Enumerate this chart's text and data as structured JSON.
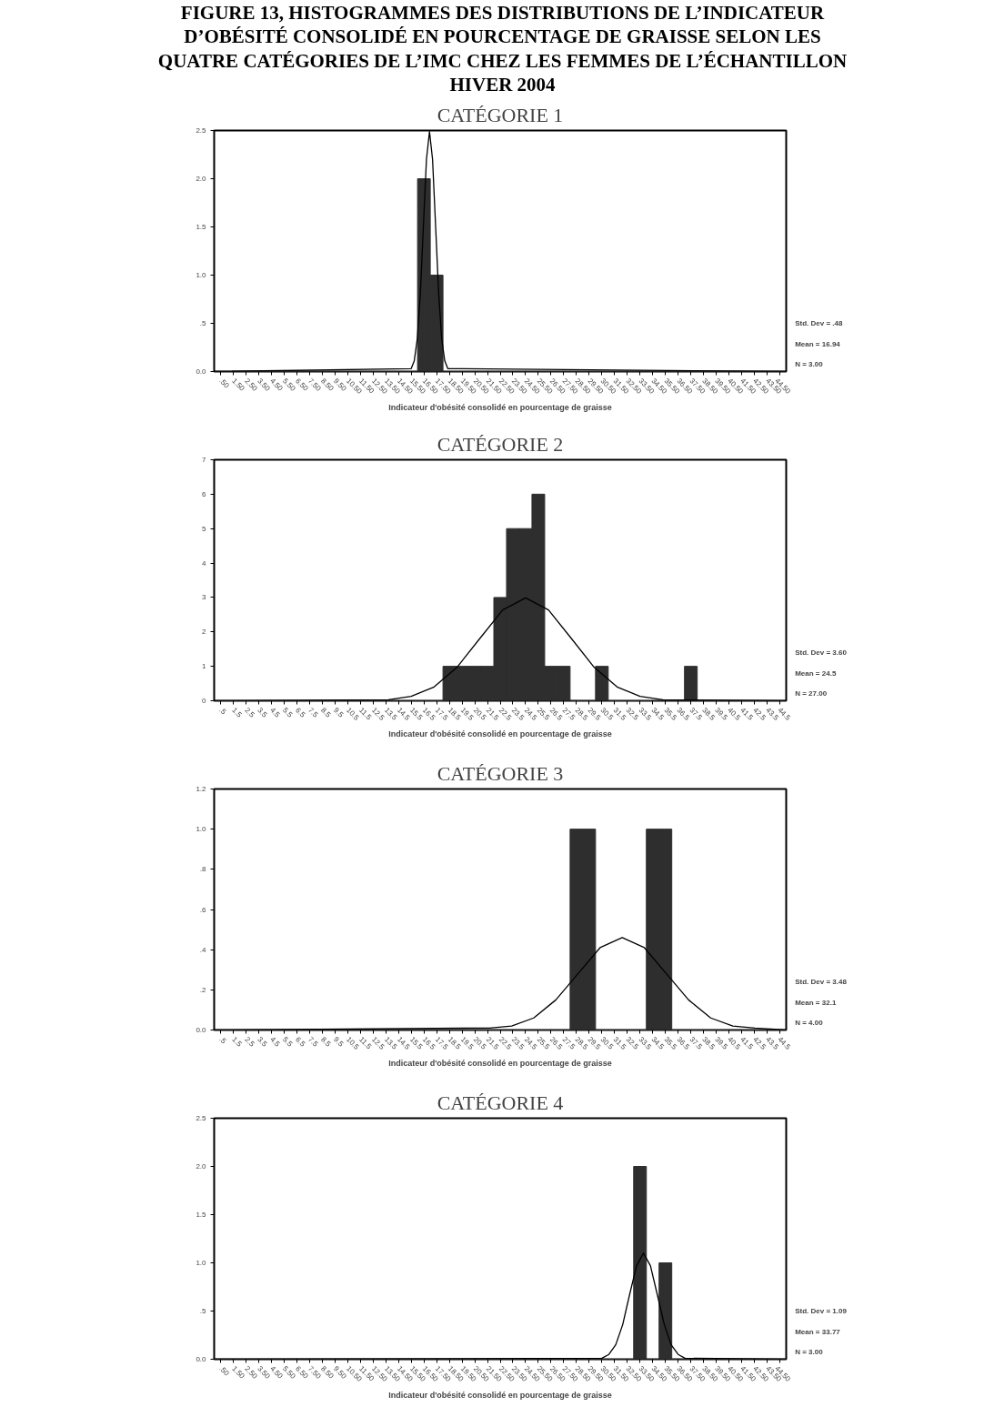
{
  "chart_data": [
    {
      "type": "histogram",
      "title": "FIGURE 13, HISTOGRAMMES DES DISTRIBUTIONS DE L’INDICATEUR D’OBÉSITÉ CONSOLIDÉ EN POURCENTAGE DE GRAISSE SELON LES QUATRE CATÉGORIES DE L’IMC CHEZ LES FEMMES DE L’ÉCHANTILLON HIVER 2004",
      "subtitle": "CATÉGORIE 1",
      "xlabel": "Indicateur d'obésité consolidé en pourcentage de graisse",
      "series": [
        {
          "type": "histogram",
          "color": "#2e2e2e",
          "bins": [
            0,
            1,
            2,
            3,
            4,
            5,
            6,
            7,
            8,
            9,
            10,
            11,
            12,
            13,
            14,
            15,
            16,
            17,
            18,
            19,
            20,
            21,
            22,
            23,
            24,
            25,
            26,
            27,
            28,
            29,
            30,
            31,
            32,
            33,
            34,
            35,
            36,
            37,
            38,
            39,
            40,
            41,
            42,
            43,
            44,
            45
          ],
          "values": [
            0,
            0,
            0,
            0,
            0,
            0,
            0,
            0,
            0,
            0,
            0,
            0,
            0,
            0,
            0,
            0,
            2,
            1,
            0,
            0,
            0,
            0,
            0,
            0,
            0,
            0,
            0,
            0,
            0,
            0,
            0,
            0,
            0,
            0,
            0,
            0,
            0,
            0,
            0,
            0,
            0,
            0,
            0,
            0,
            0
          ]
        },
        {
          "type": "line",
          "color": "#000000",
          "x": [
            0,
            15.5,
            15.74,
            15.98,
            16.22,
            16.46,
            16.7,
            16.94,
            17.18,
            17.42,
            17.66,
            17.9,
            18.14,
            18.38,
            45
          ],
          "values": [
            0,
            0.03,
            0.11,
            0.34,
            0.81,
            1.51,
            2.2,
            2.49,
            2.2,
            1.51,
            0.81,
            0.34,
            0.11,
            0.03,
            0
          ]
        }
      ],
      "xlim": [
        0,
        45
      ],
      "ylim": [
        0,
        2.5
      ],
      "yticks": [
        {
          "value": 0,
          "label": "0.0"
        },
        {
          "value": 0.5,
          "label": ".5"
        },
        {
          "value": 1,
          "label": "1.0"
        },
        {
          "value": 1.5,
          "label": "1.5"
        },
        {
          "value": 2,
          "label": "2.0"
        },
        {
          "value": 2.5,
          "label": "2.5"
        }
      ],
      "xticks": [
        {
          "value": 0.5,
          "label": ".50"
        },
        {
          "value": 1.5,
          "label": "1.50"
        },
        {
          "value": 2.5,
          "label": "2.50"
        },
        {
          "value": 3.5,
          "label": "3.50"
        },
        {
          "value": 4.5,
          "label": "4.50"
        },
        {
          "value": 5.5,
          "label": "5.50"
        },
        {
          "value": 6.5,
          "label": "6.50"
        },
        {
          "value": 7.5,
          "label": "7.50"
        },
        {
          "value": 8.5,
          "label": "8.50"
        },
        {
          "value": 9.5,
          "label": "9.50"
        },
        {
          "value": 10.5,
          "label": "10.50"
        },
        {
          "value": 11.5,
          "label": "11.50"
        },
        {
          "value": 12.5,
          "label": "12.50"
        },
        {
          "value": 13.5,
          "label": "13.50"
        },
        {
          "value": 14.5,
          "label": "14.50"
        },
        {
          "value": 15.5,
          "label": "15.50"
        },
        {
          "value": 16.5,
          "label": "16.50"
        },
        {
          "value": 17.5,
          "label": "17.50"
        },
        {
          "value": 18.5,
          "label": "18.50"
        },
        {
          "value": 19.5,
          "label": "19.50"
        },
        {
          "value": 20.5,
          "label": "20.50"
        },
        {
          "value": 21.5,
          "label": "21.50"
        },
        {
          "value": 22.5,
          "label": "22.50"
        },
        {
          "value": 23.5,
          "label": "23.50"
        },
        {
          "value": 24.5,
          "label": "24.50"
        },
        {
          "value": 25.5,
          "label": "25.50"
        },
        {
          "value": 26.5,
          "label": "26.50"
        },
        {
          "value": 27.5,
          "label": "27.50"
        },
        {
          "value": 28.5,
          "label": "28.50"
        },
        {
          "value": 29.5,
          "label": "29.50"
        },
        {
          "value": 30.5,
          "label": "30.50"
        },
        {
          "value": 31.5,
          "label": "31.50"
        },
        {
          "value": 32.5,
          "label": "32.50"
        },
        {
          "value": 33.5,
          "label": "33.50"
        },
        {
          "value": 34.5,
          "label": "34.50"
        },
        {
          "value": 35.5,
          "label": "35.50"
        },
        {
          "value": 36.5,
          "label": "36.50"
        },
        {
          "value": 37.5,
          "label": "37.50"
        },
        {
          "value": 38.5,
          "label": "38.50"
        },
        {
          "value": 39.5,
          "label": "39.50"
        },
        {
          "value": 40.5,
          "label": "40.50"
        },
        {
          "value": 41.5,
          "label": "41.50"
        },
        {
          "value": 42.5,
          "label": "42.50"
        },
        {
          "value": 43.5,
          "label": "43.50"
        },
        {
          "value": 44.5,
          "label": "44.50"
        }
      ],
      "annotations": [
        "Std. Dev = .48",
        "Mean = 16.94",
        "N = 3.00"
      ]
    },
    {
      "type": "histogram",
      "title": "CATÉGORIE 2",
      "xlabel": "Indicateur d'obésité consolidé en pourcentage de graisse",
      "series": [
        {
          "type": "histogram",
          "color": "#2e2e2e",
          "bins": [
            0,
            1,
            2,
            3,
            4,
            5,
            6,
            7,
            8,
            9,
            10,
            11,
            12,
            13,
            14,
            15,
            16,
            17,
            18,
            19,
            20,
            21,
            22,
            23,
            24,
            25,
            26,
            27,
            28,
            29,
            30,
            31,
            32,
            33,
            34,
            35,
            36,
            37,
            38,
            39,
            40,
            41,
            42,
            43,
            44,
            45
          ],
          "values": [
            0,
            0,
            0,
            0,
            0,
            0,
            0,
            0,
            0,
            0,
            0,
            0,
            0,
            0,
            0,
            0,
            0,
            0,
            1,
            1,
            1,
            1,
            3,
            5,
            5,
            6,
            1,
            1,
            0,
            0,
            1,
            0,
            0,
            0,
            0,
            0,
            0,
            1,
            0,
            0,
            0,
            0,
            0,
            0,
            0
          ]
        },
        {
          "type": "line",
          "color": "#000000",
          "x": [
            0,
            13.7,
            15.5,
            17.3,
            19.1,
            20.9,
            22.7,
            24.5,
            26.3,
            28.1,
            29.9,
            31.7,
            33.5,
            35.3,
            45
          ],
          "values": [
            0,
            0.03,
            0.13,
            0.4,
            0.97,
            1.81,
            2.64,
            2.99,
            2.64,
            1.81,
            0.97,
            0.4,
            0.13,
            0.03,
            0
          ]
        }
      ],
      "xlim": [
        0,
        45
      ],
      "ylim": [
        0,
        7
      ],
      "yticks": [
        0,
        1,
        2,
        3,
        4,
        5,
        6,
        7
      ],
      "xticks": [
        {
          "value": 0.5,
          "label": ".5"
        },
        1.5,
        2.5,
        3.5,
        4.5,
        5.5,
        6.5,
        7.5,
        8.5,
        9.5,
        10.5,
        11.5,
        12.5,
        13.5,
        14.5,
        15.5,
        16.5,
        17.5,
        18.5,
        19.5,
        20.5,
        21.5,
        22.5,
        23.5,
        24.5,
        25.5,
        26.5,
        27.5,
        28.5,
        29.5,
        30.5,
        31.5,
        32.5,
        33.5,
        34.5,
        35.5,
        36.5,
        37.5,
        38.5,
        39.5,
        40.5,
        41.5,
        42.5,
        43.5,
        44.5
      ],
      "annotations": [
        "Std. Dev = 3.60",
        "Mean = 24.5",
        "N = 27.00"
      ]
    },
    {
      "type": "histogram",
      "title": "CATÉGORIE 3",
      "xlabel": "Indicateur d'obésité consolidé en pourcentage de graisse",
      "series": [
        {
          "type": "histogram",
          "color": "#2e2e2e",
          "bins": [
            0,
            1,
            2,
            3,
            4,
            5,
            6,
            7,
            8,
            9,
            10,
            11,
            12,
            13,
            14,
            15,
            16,
            17,
            18,
            19,
            20,
            21,
            22,
            23,
            24,
            25,
            26,
            27,
            28,
            29,
            30,
            31,
            32,
            33,
            34,
            35,
            36,
            37,
            38,
            39,
            40,
            41,
            42,
            43,
            44,
            45
          ],
          "values": [
            0,
            0,
            0,
            0,
            0,
            0,
            0,
            0,
            0,
            0,
            0,
            0,
            0,
            0,
            0,
            0,
            0,
            0,
            0,
            0,
            0,
            0,
            0,
            0,
            0,
            0,
            0,
            0,
            1,
            1,
            0,
            0,
            0,
            0,
            1,
            1,
            0,
            0,
            0,
            0,
            0,
            0,
            0,
            0,
            0
          ]
        },
        {
          "type": "line",
          "color": "#000000",
          "x": [
            0,
            21.66,
            23.4,
            25.14,
            26.88,
            28.62,
            30.36,
            32.1,
            33.84,
            35.58,
            37.32,
            39.06,
            40.8,
            42.54,
            45
          ],
          "values": [
            0,
            0.01,
            0.02,
            0.06,
            0.15,
            0.28,
            0.41,
            0.46,
            0.41,
            0.28,
            0.15,
            0.06,
            0.02,
            0.01,
            0
          ]
        }
      ],
      "xlim": [
        0,
        45
      ],
      "ylim": [
        0,
        1.2
      ],
      "yticks": [
        {
          "value": 0,
          "label": "0.0"
        },
        {
          "value": 0.2,
          "label": ".2"
        },
        {
          "value": 0.4,
          "label": ".4"
        },
        {
          "value": 0.6,
          "label": ".6"
        },
        {
          "value": 0.8,
          "label": ".8"
        },
        {
          "value": 1,
          "label": "1.0"
        },
        {
          "value": 1.2,
          "label": "1.2"
        }
      ],
      "xticks": [
        {
          "value": 0.5,
          "label": ".5"
        },
        1.5,
        2.5,
        3.5,
        4.5,
        5.5,
        6.5,
        7.5,
        8.5,
        9.5,
        10.5,
        11.5,
        12.5,
        13.5,
        14.5,
        15.5,
        16.5,
        17.5,
        18.5,
        19.5,
        20.5,
        21.5,
        22.5,
        23.5,
        24.5,
        25.5,
        26.5,
        27.5,
        28.5,
        29.5,
        30.5,
        31.5,
        32.5,
        33.5,
        34.5,
        35.5,
        36.5,
        37.5,
        38.5,
        39.5,
        40.5,
        41.5,
        42.5,
        43.5,
        44.5
      ],
      "annotations": [
        "Std. Dev = 3.48",
        "Mean = 32.1",
        "N = 4.00"
      ]
    },
    {
      "type": "histogram",
      "title": "CATÉGORIE 4",
      "xlabel": "Indicateur d'obésité consolidé en pourcentage de graisse",
      "series": [
        {
          "type": "histogram",
          "color": "#2e2e2e",
          "bins": [
            0,
            1,
            2,
            3,
            4,
            5,
            6,
            7,
            8,
            9,
            10,
            11,
            12,
            13,
            14,
            15,
            16,
            17,
            18,
            19,
            20,
            21,
            22,
            23,
            24,
            25,
            26,
            27,
            28,
            29,
            30,
            31,
            32,
            33,
            34,
            35,
            36,
            37,
            38,
            39,
            40,
            41,
            42,
            43,
            44,
            45
          ],
          "values": [
            0,
            0,
            0,
            0,
            0,
            0,
            0,
            0,
            0,
            0,
            0,
            0,
            0,
            0,
            0,
            0,
            0,
            0,
            0,
            0,
            0,
            0,
            0,
            0,
            0,
            0,
            0,
            0,
            0,
            0,
            0,
            0,
            0,
            2,
            0,
            1,
            0,
            0,
            0,
            0,
            0,
            0,
            0,
            0,
            0
          ]
        },
        {
          "type": "line",
          "color": "#000000",
          "x": [
            0,
            30.5,
            31.05,
            31.59,
            32.14,
            32.68,
            33.23,
            33.77,
            34.32,
            34.86,
            35.41,
            35.95,
            36.5,
            37.04,
            45
          ],
          "values": [
            0,
            0.01,
            0.05,
            0.15,
            0.36,
            0.67,
            0.97,
            1.1,
            0.97,
            0.67,
            0.36,
            0.15,
            0.05,
            0.01,
            0
          ]
        }
      ],
      "xlim": [
        0,
        45
      ],
      "ylim": [
        0,
        2.5
      ],
      "yticks": [
        {
          "value": 0,
          "label": "0.0"
        },
        {
          "value": 0.5,
          "label": ".5"
        },
        {
          "value": 1,
          "label": "1.0"
        },
        {
          "value": 1.5,
          "label": "1.5"
        },
        {
          "value": 2,
          "label": "2.0"
        },
        {
          "value": 2.5,
          "label": "2.5"
        }
      ],
      "xticks": [
        {
          "value": 0.5,
          "label": ".50"
        },
        {
          "value": 1.5,
          "label": "1.50"
        },
        {
          "value": 2.5,
          "label": "2.50"
        },
        {
          "value": 3.5,
          "label": "3.50"
        },
        {
          "value": 4.5,
          "label": "4.50"
        },
        {
          "value": 5.5,
          "label": "5.50"
        },
        {
          "value": 6.5,
          "label": "6.50"
        },
        {
          "value": 7.5,
          "label": "7.50"
        },
        {
          "value": 8.5,
          "label": "8.50"
        },
        {
          "value": 9.5,
          "label": "9.50"
        },
        {
          "value": 10.5,
          "label": "10.50"
        },
        {
          "value": 11.5,
          "label": "11.50"
        },
        {
          "value": 12.5,
          "label": "12.50"
        },
        {
          "value": 13.5,
          "label": "13.50"
        },
        {
          "value": 14.5,
          "label": "14.50"
        },
        {
          "value": 15.5,
          "label": "15.50"
        },
        {
          "value": 16.5,
          "label": "16.50"
        },
        {
          "value": 17.5,
          "label": "17.50"
        },
        {
          "value": 18.5,
          "label": "18.50"
        },
        {
          "value": 19.5,
          "label": "19.50"
        },
        {
          "value": 20.5,
          "label": "20.50"
        },
        {
          "value": 21.5,
          "label": "21.50"
        },
        {
          "value": 22.5,
          "label": "22.50"
        },
        {
          "value": 23.5,
          "label": "23.50"
        },
        {
          "value": 24.5,
          "label": "24.50"
        },
        {
          "value": 25.5,
          "label": "25.50"
        },
        {
          "value": 26.5,
          "label": "26.50"
        },
        {
          "value": 27.5,
          "label": "27.50"
        },
        {
          "value": 28.5,
          "label": "28.50"
        },
        {
          "value": 29.5,
          "label": "29.50"
        },
        {
          "value": 30.5,
          "label": "30.50"
        },
        {
          "value": 31.5,
          "label": "31.50"
        },
        {
          "value": 32.5,
          "label": "32.50"
        },
        {
          "value": 33.5,
          "label": "33.50"
        },
        {
          "value": 34.5,
          "label": "34.50"
        },
        {
          "value": 35.5,
          "label": "35.50"
        },
        {
          "value": 36.5,
          "label": "36.50"
        },
        {
          "value": 37.5,
          "label": "37.50"
        },
        {
          "value": 38.5,
          "label": "38.50"
        },
        {
          "value": 39.5,
          "label": "39.50"
        },
        {
          "value": 40.5,
          "label": "40.50"
        },
        {
          "value": 41.5,
          "label": "41.50"
        },
        {
          "value": 42.5,
          "label": "42.50"
        },
        {
          "value": 43.5,
          "label": "43.50"
        },
        {
          "value": 44.5,
          "label": "44.50"
        }
      ],
      "annotations": [
        "Std. Dev = 1.09",
        "Mean = 33.77",
        "N = 3.00"
      ]
    }
  ]
}
